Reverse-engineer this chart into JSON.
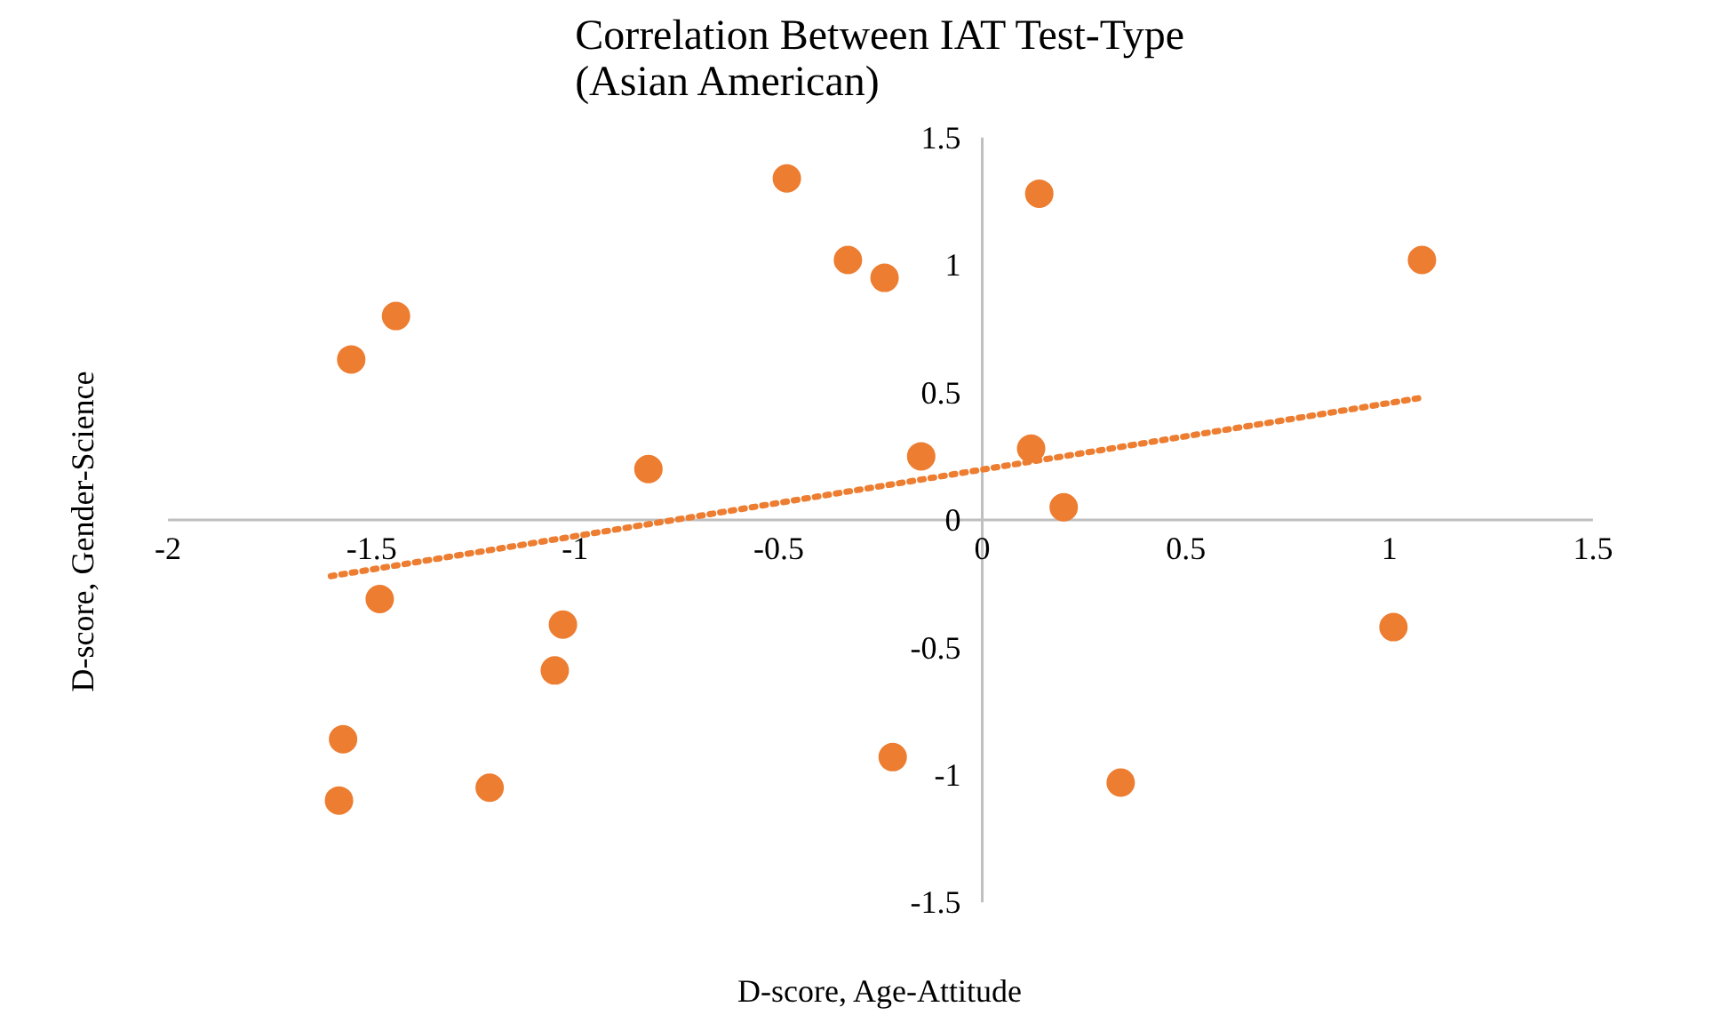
{
  "chart_data": {
    "type": "scatter",
    "title": "Correlation Between IAT Test-Type\n(Asian American)",
    "xlabel": "D-score, Age-Attitude",
    "ylabel": "D-score, Gender-Science",
    "xlim": [
      -2,
      1.5
    ],
    "ylim": [
      -1.5,
      1.5
    ],
    "xticks": [
      -2,
      -1.5,
      -1,
      -0.5,
      0,
      0.5,
      1,
      1.5
    ],
    "yticks": [
      -1.5,
      -1,
      -0.5,
      0,
      0.5,
      1,
      1.5
    ],
    "grid": false,
    "marker": "circle",
    "series": [
      {
        "type": "scatter",
        "color": "#ed7d31",
        "x": [
          -1.55,
          -1.44,
          -1.48,
          -1.57,
          -1.58,
          -1.21,
          -1.03,
          -1.05,
          -0.82,
          -0.48,
          -0.33,
          -0.24,
          -0.15,
          -0.22,
          0.14,
          0.12,
          0.2,
          0.34,
          1.08,
          1.01
        ],
        "values": [
          0.63,
          0.8,
          -0.31,
          -0.86,
          -1.1,
          -1.05,
          -0.41,
          -0.59,
          0.2,
          1.34,
          1.02,
          0.95,
          0.25,
          -0.93,
          1.28,
          0.28,
          0.05,
          -1.03,
          1.02,
          -0.42
        ]
      },
      {
        "type": "line",
        "color": "#ed7d31",
        "line_style": "dotted",
        "marker": "none",
        "x": [
          -1.6,
          1.08
        ],
        "values": [
          -0.22,
          0.48
        ]
      }
    ]
  }
}
